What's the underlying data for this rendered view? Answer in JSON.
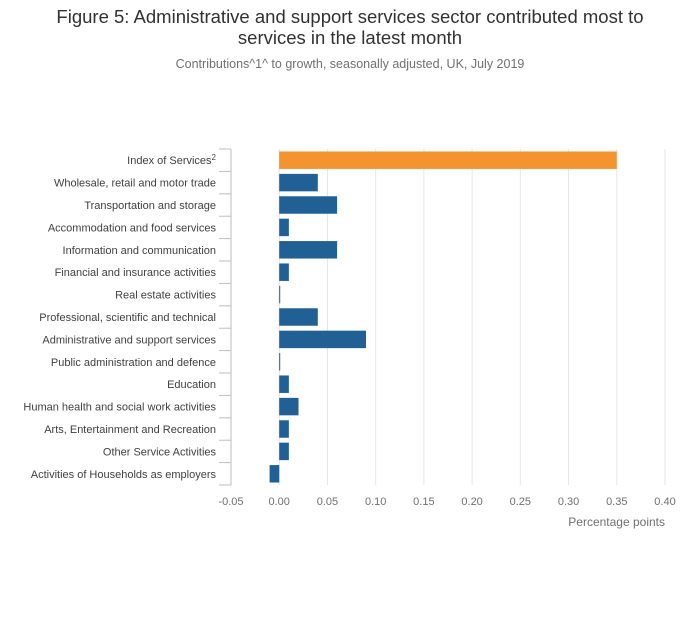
{
  "title_line1": "Figure 5: Administrative and support services sector contributed most to",
  "title_line2": "services in the latest month",
  "subtitle": "Contributions^1^ to growth, seasonally adjusted, UK, July 2019",
  "chart_data": {
    "type": "bar",
    "orientation": "horizontal",
    "categories": [
      "Index of Services",
      "Wholesale, retail and motor trade",
      "Transportation and storage",
      "Accommodation and food services",
      "Information and communication",
      "Financial and insurance activities",
      "Real estate activities",
      "Professional, scientific and technical",
      "Administrative and support services",
      "Public administration and defence",
      "Education",
      "Human health and social work activities",
      "Arts, Entertainment and Recreation",
      "Other Service Activities",
      "Activities of Households as employers"
    ],
    "category_superscripts": [
      "2",
      "",
      "",
      "",
      "",
      "",
      "",
      "",
      "",
      "",
      "",
      "",
      "",
      "",
      ""
    ],
    "values": [
      0.35,
      0.04,
      0.06,
      0.01,
      0.06,
      0.01,
      0.0,
      0.04,
      0.09,
      0.0,
      0.01,
      0.02,
      0.01,
      0.01,
      -0.01
    ],
    "highlight_index": 0,
    "colors": {
      "highlight": "#f39431",
      "default": "#206095"
    },
    "xlim": [
      -0.05,
      0.4
    ],
    "xticks": [
      -0.05,
      0.0,
      0.05,
      0.1,
      0.15,
      0.2,
      0.25,
      0.3,
      0.35,
      0.4
    ],
    "xtick_labels": [
      "-0.05",
      "0.00",
      "0.05",
      "0.10",
      "0.15",
      "0.20",
      "0.25",
      "0.30",
      "0.35",
      "0.40"
    ],
    "xlabel": "Percentage points",
    "ylabel": "",
    "grid": true
  }
}
